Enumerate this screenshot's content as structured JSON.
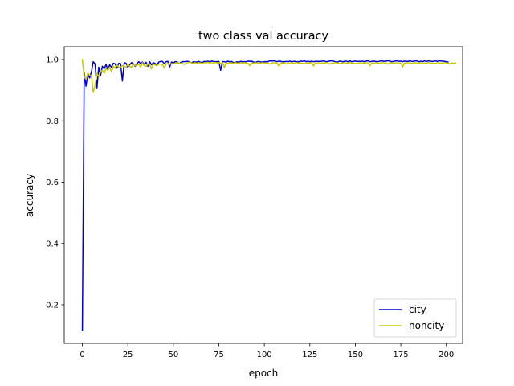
{
  "chart_data": {
    "type": "line",
    "title": "two class val accuracy",
    "xlabel": "epoch",
    "ylabel": "accuracy",
    "xlim": [
      -9.95,
      208.95
    ],
    "ylim": [
      0.074,
      1.042
    ],
    "xticks": [
      0,
      25,
      50,
      75,
      100,
      125,
      150,
      175,
      200
    ],
    "xtick_labels": [
      "0",
      "25",
      "50",
      "75",
      "100",
      "125",
      "150",
      "175",
      "200"
    ],
    "yticks": [
      0.2,
      0.4,
      0.6,
      0.8,
      1.0
    ],
    "ytick_labels": [
      "0.2",
      "0.4",
      "0.6",
      "0.8",
      "1.0"
    ],
    "grid": false,
    "legend_position": "lower-right",
    "series": [
      {
        "name": "city",
        "color": "#0000cc",
        "values": [
          0.117,
          0.957,
          0.913,
          0.952,
          0.94,
          0.96,
          0.993,
          0.986,
          0.905,
          0.975,
          0.948,
          0.978,
          0.97,
          0.984,
          0.966,
          0.983,
          0.975,
          0.988,
          0.986,
          0.972,
          0.988,
          0.987,
          0.93,
          0.99,
          0.988,
          0.975,
          0.983,
          0.99,
          0.988,
          0.978,
          0.987,
          0.993,
          0.987,
          0.992,
          0.985,
          0.991,
          0.978,
          0.993,
          0.983,
          0.99,
          0.987,
          0.982,
          0.992,
          0.994,
          0.994,
          0.987,
          0.993,
          0.994,
          0.976,
          0.992,
          0.989,
          0.993,
          0.993,
          0.987,
          0.991,
          0.993,
          0.993,
          0.994,
          0.994,
          0.993,
          0.989,
          0.993,
          0.992,
          0.992,
          0.994,
          0.991,
          0.991,
          0.994,
          0.993,
          0.995,
          0.993,
          0.995,
          0.994,
          0.993,
          0.993,
          0.994,
          0.965,
          0.993,
          0.993,
          0.992,
          0.995,
          0.992,
          0.994,
          0.99,
          0.991,
          0.993,
          0.992,
          0.994,
          0.993,
          0.993,
          0.993,
          0.995,
          0.994,
          0.995,
          0.992,
          0.991,
          0.993,
          0.994,
          0.992,
          0.992,
          0.993,
          0.993,
          0.993,
          0.996,
          0.995,
          0.996,
          0.995,
          0.993,
          0.995,
          0.994,
          0.993,
          0.993,
          0.994,
          0.993,
          0.995,
          0.993,
          0.994,
          0.994,
          0.993,
          0.993,
          0.995,
          0.994,
          0.996,
          0.993,
          0.995,
          0.993,
          0.995,
          0.993,
          0.994,
          0.994,
          0.994,
          0.994,
          0.995,
          0.995,
          0.993,
          0.994,
          0.995,
          0.996,
          0.995,
          0.993,
          0.992,
          0.994,
          0.995,
          0.993,
          0.994,
          0.995,
          0.993,
          0.996,
          0.993,
          0.994,
          0.995,
          0.994,
          0.994,
          0.994,
          0.995,
          0.993,
          0.995,
          0.996,
          0.993,
          0.994,
          0.995,
          0.994,
          0.993,
          0.994,
          0.996,
          0.995,
          0.994,
          0.995,
          0.996,
          0.995,
          0.993,
          0.994,
          0.995,
          0.996,
          0.994,
          0.995,
          0.993,
          0.995,
          0.994,
          0.994,
          0.996,
          0.994,
          0.994,
          0.996,
          0.995,
          0.993,
          0.995,
          0.993,
          0.996,
          0.994,
          0.995,
          0.995,
          0.994,
          0.994,
          0.996,
          0.994,
          0.996,
          0.995,
          0.995,
          0.994,
          0.993,
          0.992
        ]
      },
      {
        "name": "noncity",
        "color": "#c8c800",
        "values": [
          1.0,
          0.945,
          0.935,
          0.955,
          0.95,
          0.945,
          0.893,
          0.915,
          0.955,
          0.945,
          0.96,
          0.965,
          0.955,
          0.97,
          0.965,
          0.975,
          0.96,
          0.978,
          0.972,
          0.982,
          0.975,
          0.975,
          0.98,
          0.978,
          0.975,
          0.985,
          0.978,
          0.975,
          0.988,
          0.98,
          0.982,
          0.985,
          0.975,
          0.99,
          0.98,
          0.978,
          0.985,
          0.983,
          0.97,
          0.986,
          0.982,
          0.98,
          0.985,
          0.986,
          0.983,
          0.973,
          0.985,
          0.988,
          0.984,
          0.987,
          0.986,
          0.988,
          0.99,
          0.989,
          0.988,
          0.988,
          0.984,
          0.988,
          0.99,
          0.992,
          0.989,
          0.988,
          0.99,
          0.987,
          0.99,
          0.989,
          0.988,
          0.99,
          0.989,
          0.991,
          0.989,
          0.99,
          0.988,
          0.991,
          0.989,
          0.99,
          0.988,
          0.99,
          0.974,
          0.989,
          0.988,
          0.99,
          0.989,
          0.988,
          0.99,
          0.989,
          0.987,
          0.99,
          0.988,
          0.99,
          0.989,
          0.988,
          0.98,
          0.989,
          0.988,
          0.99,
          0.989,
          0.987,
          0.989,
          0.99,
          0.989,
          0.988,
          0.989,
          0.985,
          0.988,
          0.99,
          0.989,
          0.988,
          0.978,
          0.989,
          0.988,
          0.99,
          0.985,
          0.989,
          0.988,
          0.99,
          0.988,
          0.989,
          0.99,
          0.988,
          0.989,
          0.988,
          0.987,
          0.988,
          0.989,
          0.988,
          0.99,
          0.979,
          0.989,
          0.988,
          0.99,
          0.988,
          0.989,
          0.988,
          0.99,
          0.989,
          0.985,
          0.989,
          0.988,
          0.99,
          0.989,
          0.988,
          0.987,
          0.989,
          0.99,
          0.988,
          0.989,
          0.99,
          0.988,
          0.989,
          0.986,
          0.989,
          0.988,
          0.99,
          0.989,
          0.988,
          0.99,
          0.989,
          0.98,
          0.989,
          0.988,
          0.99,
          0.989,
          0.988,
          0.989,
          0.99,
          0.988,
          0.989,
          0.985,
          0.99,
          0.989,
          0.988,
          0.989,
          0.99,
          0.988,
          0.989,
          0.976,
          0.989,
          0.988,
          0.99,
          0.989,
          0.988,
          0.989,
          0.99,
          0.988,
          0.989,
          0.99,
          0.986,
          0.989,
          0.988,
          0.99,
          0.989,
          0.988,
          0.989,
          0.987,
          0.99,
          0.989,
          0.988,
          0.989,
          0.99,
          0.988,
          0.989,
          0.985,
          0.989,
          0.988,
          0.989
        ]
      }
    ]
  }
}
